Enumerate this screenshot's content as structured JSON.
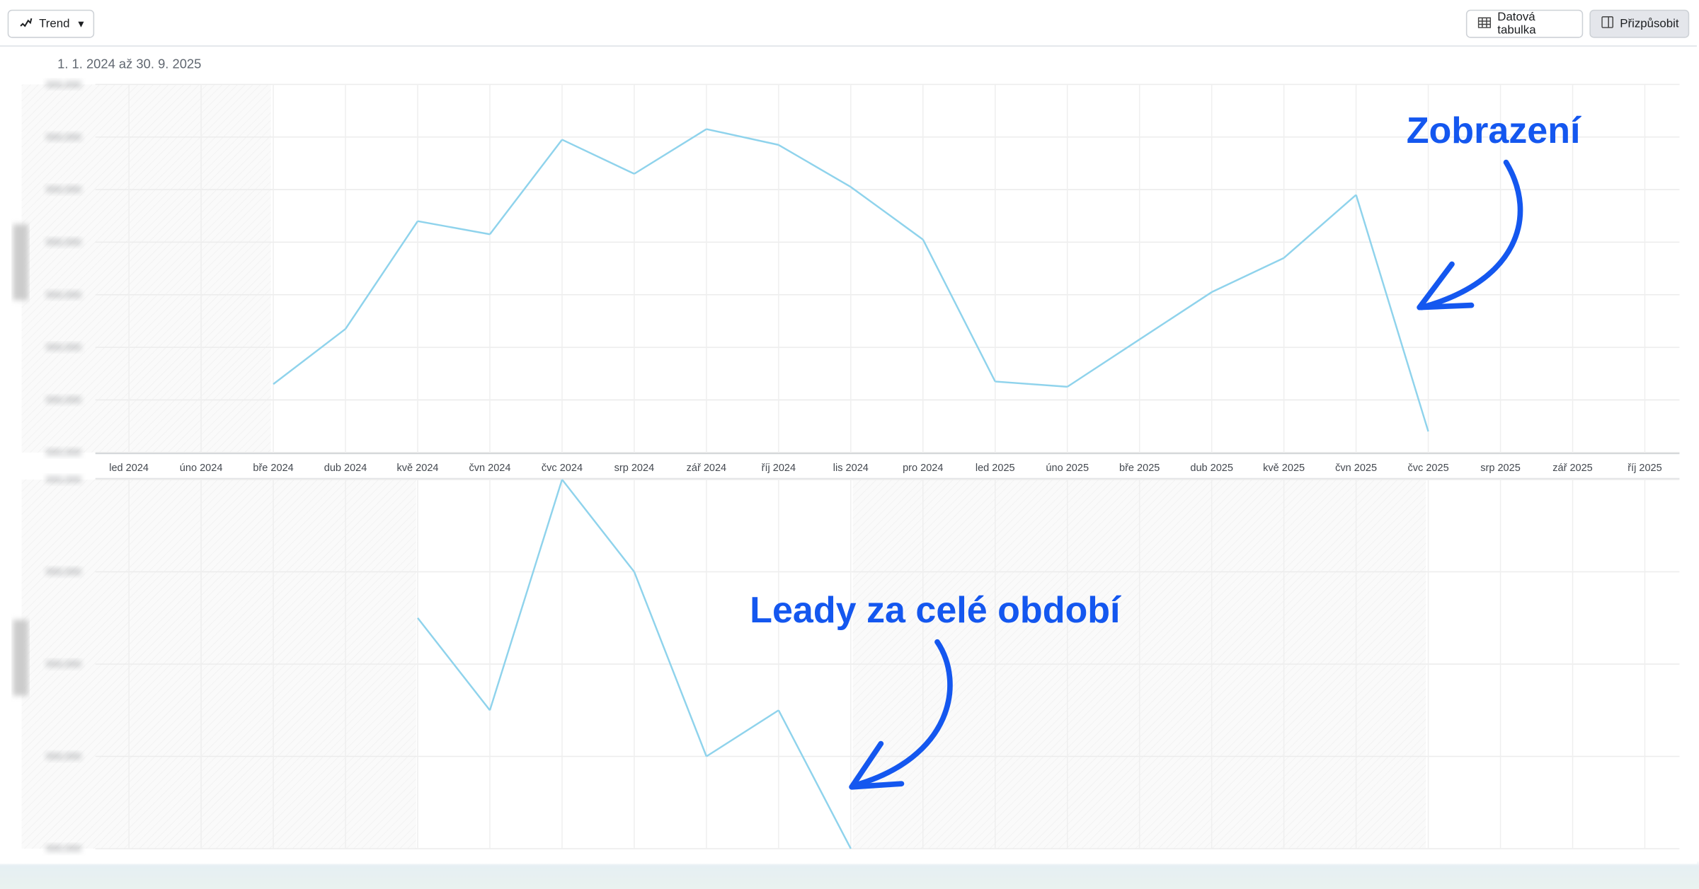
{
  "toolbar": {
    "view_label": "Trend",
    "data_table_label": "Datová tabulka",
    "customize_label": "Přizpůsobit"
  },
  "date_range": "1. 1. 2024 až 30. 9. 2025",
  "annotations": {
    "top": "Zobrazení",
    "bottom": "Leady za celé období"
  },
  "colors": {
    "line": "#8fd3ec",
    "annotation": "#1457ef"
  },
  "chart_data": [
    {
      "type": "line",
      "categories": [
        "led 2024",
        "úno 2024",
        "bře 2024",
        "dub 2024",
        "kvě 2024",
        "čvn 2024",
        "čvc 2024",
        "srp 2024",
        "zář 2024",
        "říj 2024",
        "lis 2024",
        "pro 2024",
        "led 2025",
        "úno 2025",
        "bře 2025",
        "dub 2025",
        "kvě 2025",
        "čvn 2025",
        "čvc 2025",
        "srp 2025",
        "zář 2025",
        "říj 2025"
      ],
      "values": [
        null,
        null,
        1.3,
        2.35,
        4.4,
        4.15,
        5.95,
        5.3,
        6.15,
        5.85,
        5.05,
        4.05,
        1.35,
        1.25,
        2.15,
        3.05,
        3.7,
        4.9,
        0.4,
        null,
        null,
        null
      ],
      "ylim": [
        0,
        7
      ],
      "yticks_unreadable": true,
      "grid": true
    },
    {
      "type": "line",
      "categories": [
        "led 2024",
        "úno 2024",
        "bře 2024",
        "dub 2024",
        "kvě 2024",
        "čvn 2024",
        "čvc 2024",
        "srp 2024",
        "zář 2024",
        "říj 2024",
        "lis 2024",
        "pro 2024",
        "led 2025",
        "úno 2025",
        "bře 2025",
        "dub 2025",
        "kvě 2025",
        "čvn 2025",
        "čvc 2025",
        "srp 2025",
        "zář 2025",
        "říj 2025"
      ],
      "values": [
        null,
        null,
        null,
        null,
        2.5,
        1.5,
        4,
        3,
        1,
        1.5,
        0,
        null,
        null,
        null,
        null,
        null,
        null,
        null,
        null,
        null,
        null,
        null
      ],
      "ylim": [
        0,
        4
      ],
      "yticks_unreadable": true,
      "grid": true
    }
  ]
}
